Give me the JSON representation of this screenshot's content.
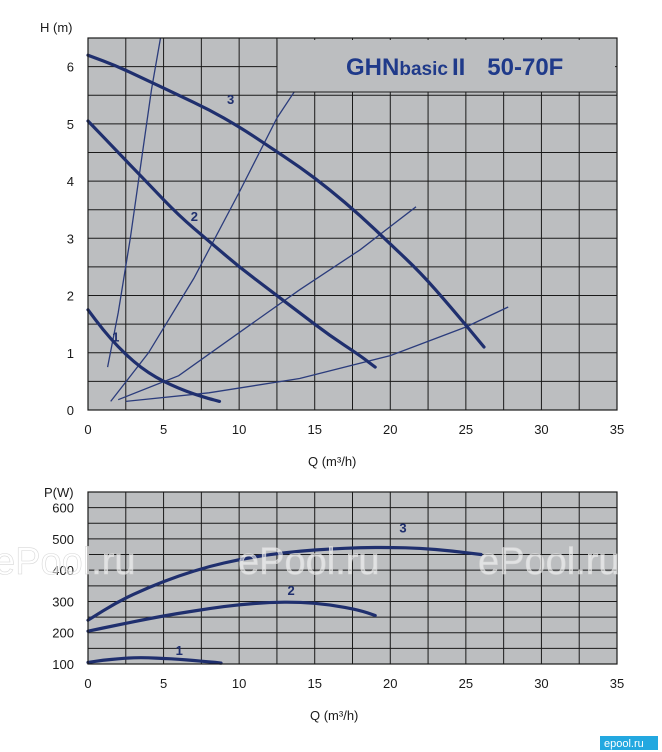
{
  "title": {
    "main": "GHN",
    "small": "basic",
    "roman": "II",
    "model": "50-70F"
  },
  "watermark": {
    "text": "ePool.ru",
    "corner": "epool.ru"
  },
  "colors": {
    "curve": "#1f2f6e",
    "plot_bg": "#bcbec0",
    "title": "#1f3a8a"
  },
  "chart_data": [
    {
      "type": "line",
      "name": "head-curve",
      "ylabel": "H (m)",
      "xlabel": "Q (m³/h)",
      "xlim": [
        0,
        35
      ],
      "ylim": [
        0,
        6.5
      ],
      "x_ticks": [
        "0",
        "5",
        "10",
        "15",
        "20",
        "25",
        "30",
        "35"
      ],
      "y_ticks": [
        "0",
        "1",
        "2",
        "3",
        "4",
        "5",
        "6"
      ],
      "x_tick_values": [
        0,
        5,
        10,
        15,
        20,
        25,
        30,
        35
      ],
      "y_tick_values": [
        0,
        1,
        2,
        3,
        4,
        5,
        6
      ],
      "grid": true,
      "series": [
        {
          "name": "1",
          "x": [
            0,
            1,
            2,
            3,
            4,
            5,
            6,
            7,
            8,
            8.7
          ],
          "y": [
            1.75,
            1.4,
            1.1,
            0.85,
            0.65,
            0.5,
            0.38,
            0.28,
            0.2,
            0.15
          ]
        },
        {
          "name": "2",
          "x": [
            0,
            2,
            4,
            6,
            8,
            10,
            12,
            14,
            16,
            18,
            19
          ],
          "y": [
            5.05,
            4.5,
            3.95,
            3.4,
            2.95,
            2.5,
            2.1,
            1.7,
            1.3,
            0.95,
            0.75
          ]
        },
        {
          "name": "3",
          "x": [
            0,
            2,
            4,
            6,
            8,
            10,
            12,
            14,
            16,
            18,
            20,
            22,
            24,
            26.2
          ],
          "y": [
            6.2,
            6.0,
            5.75,
            5.5,
            5.25,
            4.95,
            4.6,
            4.25,
            3.85,
            3.4,
            2.9,
            2.4,
            1.8,
            1.1
          ]
        }
      ],
      "system_curves": [
        {
          "x": [
            1.3,
            2,
            2.8,
            3.5,
            4.2,
            4.8
          ],
          "y": [
            0.75,
            1.7,
            3.0,
            4.3,
            5.6,
            6.5
          ]
        },
        {
          "x": [
            1.5,
            4,
            7,
            10,
            12.5,
            14
          ],
          "y": [
            0.15,
            1.0,
            2.3,
            3.8,
            5.1,
            5.7
          ]
        },
        {
          "x": [
            2,
            6,
            10,
            14,
            18,
            21.7
          ],
          "y": [
            0.18,
            0.6,
            1.35,
            2.1,
            2.8,
            3.55
          ]
        },
        {
          "x": [
            2.5,
            8,
            14,
            20,
            25,
            27.8
          ],
          "y": [
            0.15,
            0.3,
            0.55,
            0.95,
            1.45,
            1.8
          ]
        }
      ]
    },
    {
      "type": "line",
      "name": "power-curve",
      "ylabel": "P(W)",
      "xlabel": "Q (m³/h)",
      "xlim": [
        0,
        35
      ],
      "ylim": [
        100,
        650
      ],
      "x_ticks": [
        "0",
        "5",
        "10",
        "15",
        "20",
        "25",
        "30",
        "35"
      ],
      "y_ticks": [
        "100",
        "200",
        "300",
        "400",
        "500",
        "600"
      ],
      "x_tick_values": [
        0,
        5,
        10,
        15,
        20,
        25,
        30,
        35
      ],
      "y_tick_values": [
        100,
        200,
        300,
        400,
        500,
        600
      ],
      "grid": true,
      "series": [
        {
          "name": "1",
          "x": [
            0,
            1,
            2,
            3,
            4,
            5,
            6,
            7,
            8,
            8.8
          ],
          "y": [
            105,
            112,
            117,
            120,
            120,
            118,
            115,
            111,
            107,
            103
          ]
        },
        {
          "name": "2",
          "x": [
            0,
            2,
            4,
            6,
            8,
            10,
            12,
            14,
            16,
            18,
            19
          ],
          "y": [
            205,
            225,
            245,
            262,
            277,
            290,
            297,
            298,
            290,
            272,
            255
          ]
        },
        {
          "name": "3",
          "x": [
            0,
            2,
            4,
            6,
            8,
            10,
            12,
            14,
            16,
            18,
            20,
            22,
            24,
            26
          ],
          "y": [
            240,
            300,
            345,
            382,
            412,
            434,
            450,
            461,
            468,
            472,
            473,
            470,
            462,
            450
          ]
        }
      ]
    }
  ]
}
